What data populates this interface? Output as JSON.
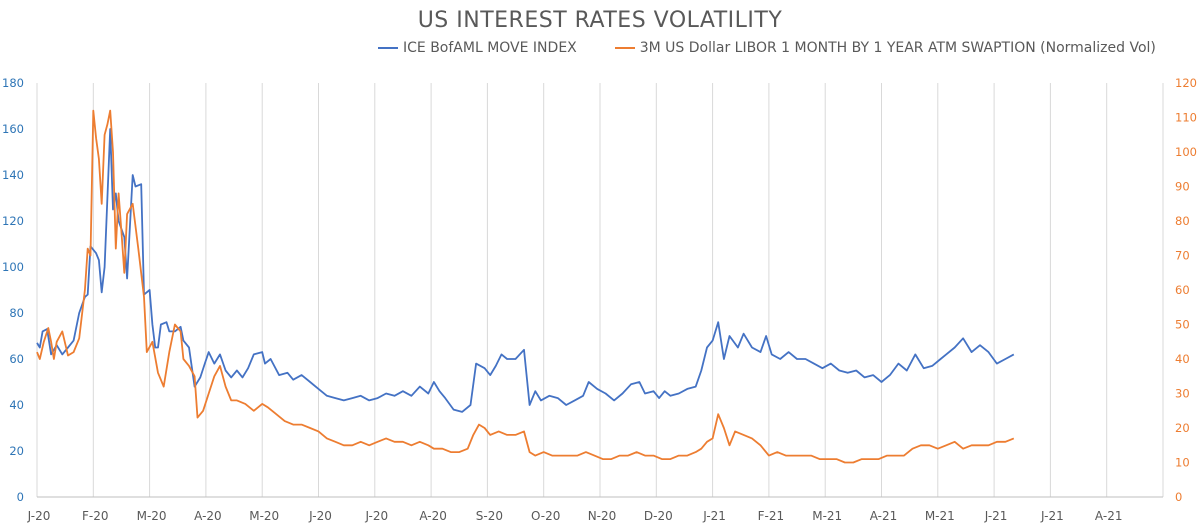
{
  "chart_data": {
    "type": "line",
    "title": "US INTEREST RATES VOLATILITY",
    "colors": {
      "left_axis": "#2e75b6",
      "right_axis": "#ed7d31",
      "grid": "#d9d9d9",
      "axis_text": "#595959"
    },
    "x": [
      "J-20",
      "F-20",
      "M-20",
      "A-20",
      "M-20",
      "J-20",
      "J-20",
      "A-20",
      "S-20",
      "O-20",
      "N-20",
      "D-20",
      "J-21",
      "F-21",
      "M-21",
      "A-21",
      "M-21",
      "J-21",
      "J-21",
      "A-21"
    ],
    "y_left_ticks": [
      "0",
      "20",
      "40",
      "60",
      "80",
      "100",
      "120",
      "140",
      "160",
      "180"
    ],
    "y_right_ticks": [
      "0",
      "10",
      "20",
      "30",
      "40",
      "50",
      "60",
      "70",
      "80",
      "90",
      "100",
      "110",
      "120"
    ],
    "ylim_left": [
      0,
      180
    ],
    "ylim_right": [
      0,
      120
    ],
    "series": [
      {
        "name": "ICE BofAML MOVE INDEX",
        "axis": "left",
        "color": "#4472c4",
        "points": [
          [
            0,
            67
          ],
          [
            0.05,
            65
          ],
          [
            0.1,
            72
          ],
          [
            0.18,
            73
          ],
          [
            0.25,
            62
          ],
          [
            0.35,
            66
          ],
          [
            0.45,
            62
          ],
          [
            0.55,
            65
          ],
          [
            0.65,
            68
          ],
          [
            0.75,
            80
          ],
          [
            0.85,
            87
          ],
          [
            0.9,
            88
          ],
          [
            0.95,
            109
          ],
          [
            1.05,
            106
          ],
          [
            1.1,
            103
          ],
          [
            1.15,
            89
          ],
          [
            1.2,
            100
          ],
          [
            1.3,
            160
          ],
          [
            1.35,
            125
          ],
          [
            1.4,
            132
          ],
          [
            1.45,
            120
          ],
          [
            1.55,
            113
          ],
          [
            1.6,
            95
          ],
          [
            1.7,
            140
          ],
          [
            1.75,
            135
          ],
          [
            1.85,
            136
          ],
          [
            1.9,
            88
          ],
          [
            2.0,
            90
          ],
          [
            2.05,
            75
          ],
          [
            2.1,
            65
          ],
          [
            2.15,
            65
          ],
          [
            2.2,
            75
          ],
          [
            2.3,
            76
          ],
          [
            2.35,
            72
          ],
          [
            2.45,
            72
          ],
          [
            2.55,
            74
          ],
          [
            2.6,
            68
          ],
          [
            2.7,
            65
          ],
          [
            2.8,
            48
          ],
          [
            2.9,
            52
          ],
          [
            2.98,
            58
          ],
          [
            3.05,
            63
          ],
          [
            3.15,
            58
          ],
          [
            3.25,
            62
          ],
          [
            3.35,
            55
          ],
          [
            3.45,
            52
          ],
          [
            3.55,
            55
          ],
          [
            3.65,
            52
          ],
          [
            3.75,
            56
          ],
          [
            3.85,
            62
          ],
          [
            4.0,
            63
          ],
          [
            4.05,
            58
          ],
          [
            4.15,
            60
          ],
          [
            4.3,
            53
          ],
          [
            4.45,
            54
          ],
          [
            4.55,
            51
          ],
          [
            4.7,
            53
          ],
          [
            4.85,
            50
          ],
          [
            5.0,
            47
          ],
          [
            5.15,
            44
          ],
          [
            5.3,
            43
          ],
          [
            5.45,
            42
          ],
          [
            5.6,
            43
          ],
          [
            5.75,
            44
          ],
          [
            5.9,
            42
          ],
          [
            6.05,
            43
          ],
          [
            6.2,
            45
          ],
          [
            6.35,
            44
          ],
          [
            6.5,
            46
          ],
          [
            6.65,
            44
          ],
          [
            6.8,
            48
          ],
          [
            6.95,
            45
          ],
          [
            7.05,
            50
          ],
          [
            7.15,
            46
          ],
          [
            7.25,
            43
          ],
          [
            7.4,
            38
          ],
          [
            7.55,
            37
          ],
          [
            7.7,
            40
          ],
          [
            7.8,
            58
          ],
          [
            7.95,
            56
          ],
          [
            8.05,
            53
          ],
          [
            8.15,
            57
          ],
          [
            8.25,
            62
          ],
          [
            8.35,
            60
          ],
          [
            8.5,
            60
          ],
          [
            8.65,
            64
          ],
          [
            8.75,
            40
          ],
          [
            8.85,
            46
          ],
          [
            8.95,
            42
          ],
          [
            9.1,
            44
          ],
          [
            9.25,
            43
          ],
          [
            9.4,
            40
          ],
          [
            9.55,
            42
          ],
          [
            9.7,
            44
          ],
          [
            9.8,
            50
          ],
          [
            9.95,
            47
          ],
          [
            10.1,
            45
          ],
          [
            10.25,
            42
          ],
          [
            10.4,
            45
          ],
          [
            10.55,
            49
          ],
          [
            10.7,
            50
          ],
          [
            10.8,
            45
          ],
          [
            10.95,
            46
          ],
          [
            11.05,
            43
          ],
          [
            11.15,
            46
          ],
          [
            11.25,
            44
          ],
          [
            11.4,
            45
          ],
          [
            11.55,
            47
          ],
          [
            11.7,
            48
          ],
          [
            11.8,
            55
          ],
          [
            11.9,
            65
          ],
          [
            12.0,
            68
          ],
          [
            12.1,
            76
          ],
          [
            12.2,
            60
          ],
          [
            12.3,
            70
          ],
          [
            12.45,
            65
          ],
          [
            12.55,
            71
          ],
          [
            12.7,
            65
          ],
          [
            12.85,
            63
          ],
          [
            12.95,
            70
          ],
          [
            13.05,
            62
          ],
          [
            13.2,
            60
          ],
          [
            13.35,
            63
          ],
          [
            13.5,
            60
          ],
          [
            13.65,
            60
          ],
          [
            13.8,
            58
          ],
          [
            13.95,
            56
          ],
          [
            14.1,
            58
          ],
          [
            14.25,
            55
          ],
          [
            14.4,
            54
          ],
          [
            14.55,
            55
          ],
          [
            14.7,
            52
          ],
          [
            14.85,
            53
          ],
          [
            15.0,
            50
          ],
          [
            15.15,
            53
          ],
          [
            15.3,
            58
          ],
          [
            15.45,
            55
          ],
          [
            15.6,
            62
          ],
          [
            15.75,
            56
          ],
          [
            15.9,
            57
          ],
          [
            16.05,
            60
          ],
          [
            16.15,
            62
          ],
          [
            16.3,
            65
          ],
          [
            16.45,
            69
          ],
          [
            16.6,
            63
          ],
          [
            16.75,
            66
          ],
          [
            16.9,
            63
          ],
          [
            17.05,
            58
          ],
          [
            17.2,
            60
          ],
          [
            17.35,
            62
          ]
        ]
      },
      {
        "name": "3M US Dollar LIBOR 1 MONTH BY 1 YEAR ATM SWAPTION (Normalized Vol)",
        "axis": "right",
        "color": "#ed7d31",
        "points": [
          [
            0,
            42
          ],
          [
            0.05,
            40
          ],
          [
            0.12,
            45
          ],
          [
            0.2,
            49
          ],
          [
            0.25,
            45
          ],
          [
            0.3,
            40
          ],
          [
            0.35,
            45
          ],
          [
            0.45,
            48
          ],
          [
            0.55,
            41
          ],
          [
            0.65,
            42
          ],
          [
            0.75,
            46
          ],
          [
            0.85,
            60
          ],
          [
            0.9,
            72
          ],
          [
            0.95,
            70
          ],
          [
            1.0,
            112
          ],
          [
            1.05,
            104
          ],
          [
            1.1,
            98
          ],
          [
            1.15,
            85
          ],
          [
            1.2,
            105
          ],
          [
            1.25,
            108
          ],
          [
            1.3,
            112
          ],
          [
            1.35,
            100
          ],
          [
            1.4,
            72
          ],
          [
            1.45,
            88
          ],
          [
            1.5,
            77
          ],
          [
            1.55,
            65
          ],
          [
            1.6,
            82
          ],
          [
            1.7,
            85
          ],
          [
            1.8,
            72
          ],
          [
            1.9,
            58
          ],
          [
            1.95,
            42
          ],
          [
            2.05,
            45
          ],
          [
            2.15,
            36
          ],
          [
            2.25,
            32
          ],
          [
            2.35,
            42
          ],
          [
            2.45,
            50
          ],
          [
            2.55,
            48
          ],
          [
            2.6,
            40
          ],
          [
            2.7,
            38
          ],
          [
            2.8,
            35
          ],
          [
            2.85,
            23
          ],
          [
            2.95,
            25
          ],
          [
            3.05,
            30
          ],
          [
            3.15,
            35
          ],
          [
            3.25,
            38
          ],
          [
            3.35,
            32
          ],
          [
            3.45,
            28
          ],
          [
            3.55,
            28
          ],
          [
            3.7,
            27
          ],
          [
            3.85,
            25
          ],
          [
            4.0,
            27
          ],
          [
            4.1,
            26
          ],
          [
            4.25,
            24
          ],
          [
            4.4,
            22
          ],
          [
            4.55,
            21
          ],
          [
            4.7,
            21
          ],
          [
            4.85,
            20
          ],
          [
            5.0,
            19
          ],
          [
            5.15,
            17
          ],
          [
            5.3,
            16
          ],
          [
            5.45,
            15
          ],
          [
            5.6,
            15
          ],
          [
            5.75,
            16
          ],
          [
            5.9,
            15
          ],
          [
            6.05,
            16
          ],
          [
            6.2,
            17
          ],
          [
            6.35,
            16
          ],
          [
            6.5,
            16
          ],
          [
            6.65,
            15
          ],
          [
            6.8,
            16
          ],
          [
            6.95,
            15
          ],
          [
            7.05,
            14
          ],
          [
            7.2,
            14
          ],
          [
            7.35,
            13
          ],
          [
            7.5,
            13
          ],
          [
            7.65,
            14
          ],
          [
            7.75,
            18
          ],
          [
            7.85,
            21
          ],
          [
            7.95,
            20
          ],
          [
            8.05,
            18
          ],
          [
            8.2,
            19
          ],
          [
            8.35,
            18
          ],
          [
            8.5,
            18
          ],
          [
            8.65,
            19
          ],
          [
            8.75,
            13
          ],
          [
            8.85,
            12
          ],
          [
            9.0,
            13
          ],
          [
            9.15,
            12
          ],
          [
            9.3,
            12
          ],
          [
            9.45,
            12
          ],
          [
            9.6,
            12
          ],
          [
            9.75,
            13
          ],
          [
            9.9,
            12
          ],
          [
            10.05,
            11
          ],
          [
            10.2,
            11
          ],
          [
            10.35,
            12
          ],
          [
            10.5,
            12
          ],
          [
            10.65,
            13
          ],
          [
            10.8,
            12
          ],
          [
            10.95,
            12
          ],
          [
            11.1,
            11
          ],
          [
            11.25,
            11
          ],
          [
            11.4,
            12
          ],
          [
            11.55,
            12
          ],
          [
            11.7,
            13
          ],
          [
            11.8,
            14
          ],
          [
            11.9,
            16
          ],
          [
            12.0,
            17
          ],
          [
            12.1,
            24
          ],
          [
            12.2,
            20
          ],
          [
            12.3,
            15
          ],
          [
            12.4,
            19
          ],
          [
            12.55,
            18
          ],
          [
            12.7,
            17
          ],
          [
            12.85,
            15
          ],
          [
            13.0,
            12
          ],
          [
            13.15,
            13
          ],
          [
            13.3,
            12
          ],
          [
            13.45,
            12
          ],
          [
            13.6,
            12
          ],
          [
            13.75,
            12
          ],
          [
            13.9,
            11
          ],
          [
            14.05,
            11
          ],
          [
            14.2,
            11
          ],
          [
            14.35,
            10
          ],
          [
            14.5,
            10
          ],
          [
            14.65,
            11
          ],
          [
            14.8,
            11
          ],
          [
            14.95,
            11
          ],
          [
            15.1,
            12
          ],
          [
            15.25,
            12
          ],
          [
            15.4,
            12
          ],
          [
            15.55,
            14
          ],
          [
            15.7,
            15
          ],
          [
            15.85,
            15
          ],
          [
            16.0,
            14
          ],
          [
            16.15,
            15
          ],
          [
            16.3,
            16
          ],
          [
            16.45,
            14
          ],
          [
            16.6,
            15
          ],
          [
            16.75,
            15
          ],
          [
            16.9,
            15
          ],
          [
            17.05,
            16
          ],
          [
            17.2,
            16
          ],
          [
            17.35,
            17
          ]
        ]
      }
    ],
    "grid": "vertical",
    "legend_position": "top-center"
  }
}
